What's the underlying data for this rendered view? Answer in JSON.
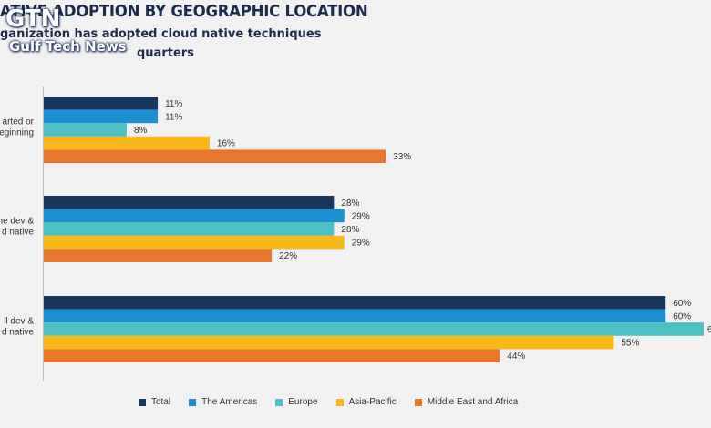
{
  "header": {
    "title": "ATIVE ADOPTION BY GEOGRAPHIC LOCATION",
    "subtitle_line1": "ganization has adopted cloud native techniques",
    "subtitle_line2": "quarters"
  },
  "watermark": {
    "logo": "GTN",
    "text": "Gulf Tech News"
  },
  "colors": {
    "Total": "#1b365d",
    "The Americas": "#1c8fd0",
    "Europe": "#4dc1c1",
    "Asia-Pacific": "#fbb819",
    "Middle East and Africa": "#e8772e"
  },
  "chart_data": {
    "type": "bar",
    "orientation": "horizontal",
    "categories": [
      [
        "arted or",
        "eginning"
      ],
      [
        "he dev &",
        "d native"
      ],
      [
        "ll dev &",
        "d native"
      ]
    ],
    "series": [
      {
        "name": "Total",
        "values": [
          11,
          28,
          60
        ]
      },
      {
        "name": "The Americas",
        "values": [
          11,
          29,
          60
        ]
      },
      {
        "name": "Europe",
        "values": [
          8,
          28,
          6
        ]
      },
      {
        "name": "Asia-Pacific",
        "values": [
          16,
          29,
          55
        ]
      },
      {
        "name": "Middle East and Africa",
        "values": [
          33,
          22,
          44
        ]
      }
    ],
    "value_labels": [
      [
        "11%",
        "28%",
        "60%"
      ],
      [
        "11%",
        "29%",
        "60%"
      ],
      [
        "8%",
        "28%",
        "6"
      ],
      [
        "16%",
        "29%",
        "55%"
      ],
      [
        "33%",
        "22%",
        "44%"
      ]
    ],
    "legend_position": "bottom"
  }
}
